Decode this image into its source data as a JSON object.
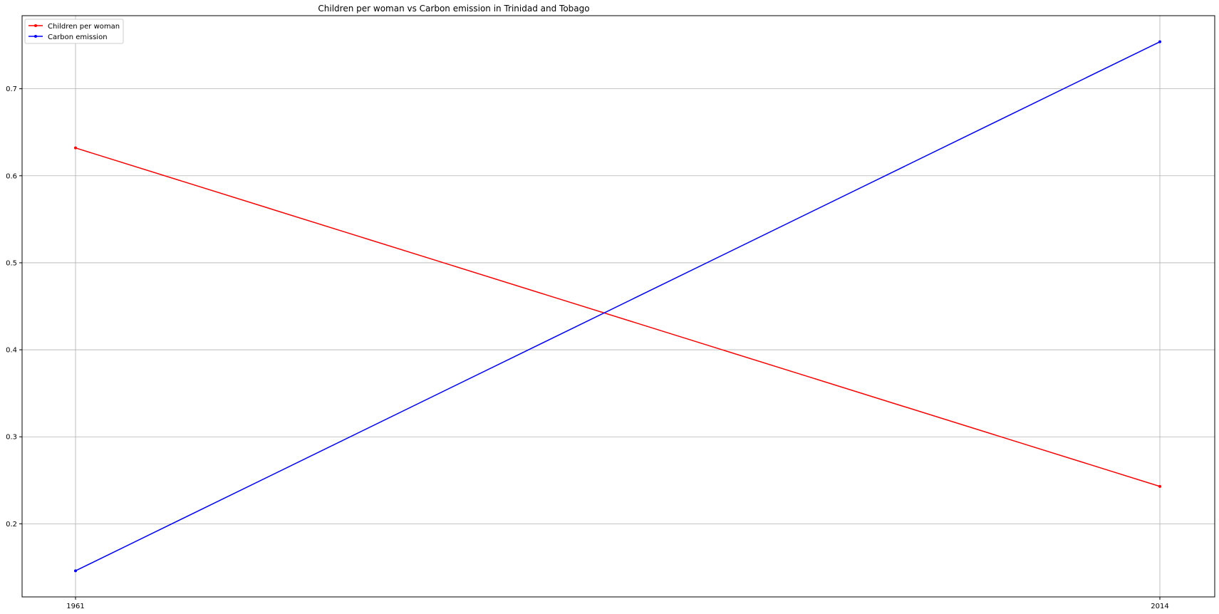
{
  "chart_data": {
    "type": "line",
    "title": "Children per woman vs Carbon emission in Trinidad and Tobago",
    "xlabel": "",
    "ylabel": "",
    "x": [
      "1961",
      "2014"
    ],
    "series": [
      {
        "name": "Children per woman",
        "color": "#ff0000",
        "values": [
          0.632,
          0.243
        ]
      },
      {
        "name": "Carbon emission",
        "color": "#0000ff",
        "values": [
          0.146,
          0.754
        ]
      }
    ],
    "yticks": [
      "0.2",
      "0.3",
      "0.4",
      "0.5",
      "0.6",
      "0.7"
    ],
    "ylim": [
      0.116,
      0.784
    ],
    "grid": true,
    "legend": "top-left"
  }
}
